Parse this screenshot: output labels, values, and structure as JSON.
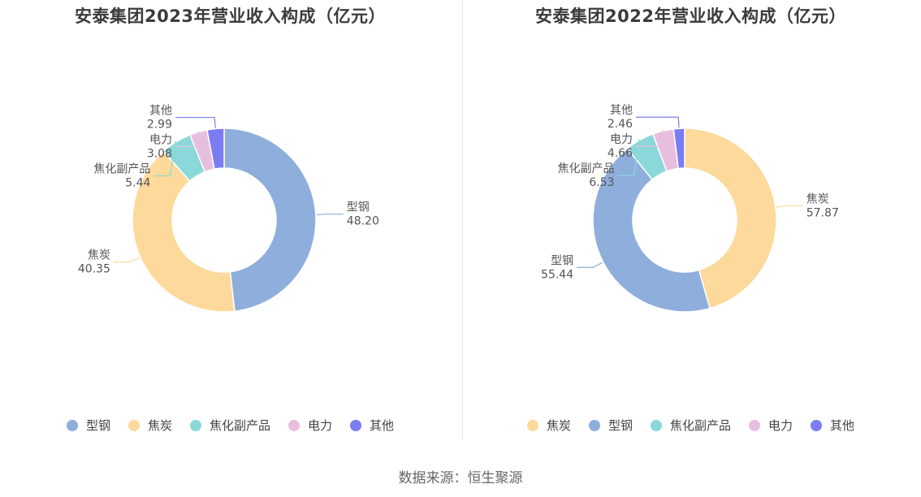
{
  "colors": {
    "型钢": "#8eaedc",
    "焦炭": "#fdd99b",
    "焦化副产品": "#8ad8da",
    "电力": "#e8bedf",
    "其他": "#7c7cf2"
  },
  "source": "数据来源：恒生聚源",
  "chart_data": [
    {
      "type": "pie",
      "title": "安泰集团2023年营业收入构成（亿元）",
      "categories": [
        "型钢",
        "焦炭",
        "焦化副产品",
        "电力",
        "其他"
      ],
      "values": [
        48.2,
        40.35,
        5.44,
        3.08,
        2.99
      ],
      "value_labels": [
        "48.20",
        "40.35",
        "5.44",
        "3.08",
        "2.99"
      ],
      "legend": [
        "型钢",
        "焦炭",
        "焦化副产品",
        "电力",
        "其他"
      ],
      "legend_position": "bottom"
    },
    {
      "type": "pie",
      "title": "安泰集团2022年营业收入构成（亿元）",
      "categories": [
        "焦炭",
        "型钢",
        "焦化副产品",
        "电力",
        "其他"
      ],
      "values": [
        57.87,
        55.44,
        6.53,
        4.66,
        2.46
      ],
      "value_labels": [
        "57.87",
        "55.44",
        "6.53",
        "4.66",
        "2.46"
      ],
      "legend": [
        "焦炭",
        "型钢",
        "焦化副产品",
        "电力",
        "其他"
      ],
      "legend_position": "bottom"
    }
  ]
}
